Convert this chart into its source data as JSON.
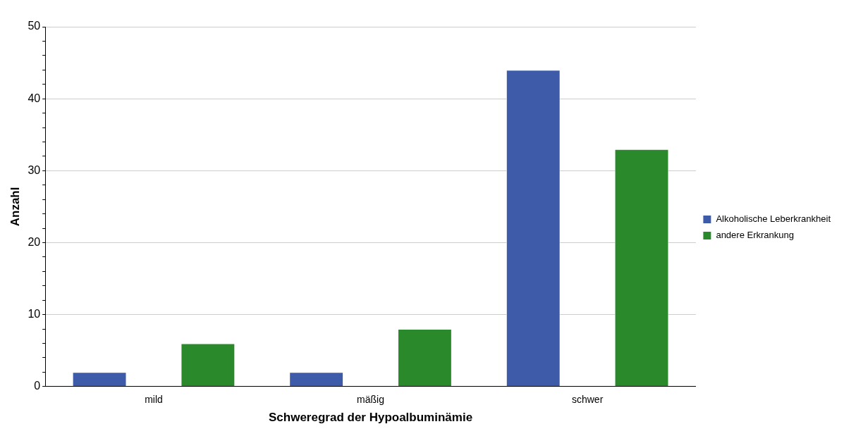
{
  "chart_data": {
    "type": "bar",
    "xlabel": "Schweregrad der Hypoalbuminämie",
    "ylabel": "Anzahl",
    "categories": [
      "mild",
      "mäßig",
      "schwer"
    ],
    "series": [
      {
        "name": "Alkoholische Leberkrankheit",
        "color": "#3e5ba9",
        "values": [
          2,
          2,
          44
        ]
      },
      {
        "name": "andere Erkrankung",
        "color": "#2a8a2b",
        "values": [
          6,
          8,
          33
        ]
      }
    ],
    "ylim": [
      0,
      50
    ],
    "yticks": [
      0,
      {
        "value": 2,
        "label": null
      },
      {
        "value": 4,
        "label": null
      },
      {
        "value": 6,
        "label": null
      },
      {
        "value": 8,
        "label": null
      },
      10,
      {
        "value": 12,
        "label": null
      },
      {
        "value": 14,
        "label": null
      },
      {
        "value": 16,
        "label": null
      },
      {
        "value": 18,
        "label": null
      },
      20,
      {
        "value": 22,
        "label": null
      },
      {
        "value": 24,
        "label": null
      },
      {
        "value": 26,
        "label": null
      },
      {
        "value": 28,
        "label": null
      },
      30,
      {
        "value": 32,
        "label": null
      },
      {
        "value": 34,
        "label": null
      },
      {
        "value": 36,
        "label": null
      },
      {
        "value": 38,
        "label": null
      },
      40,
      {
        "value": 42,
        "label": null
      },
      {
        "value": 44,
        "label": null
      },
      {
        "value": 46,
        "label": null
      },
      {
        "value": 48,
        "label": null
      },
      50
    ],
    "grid": "y",
    "legend": "right"
  }
}
